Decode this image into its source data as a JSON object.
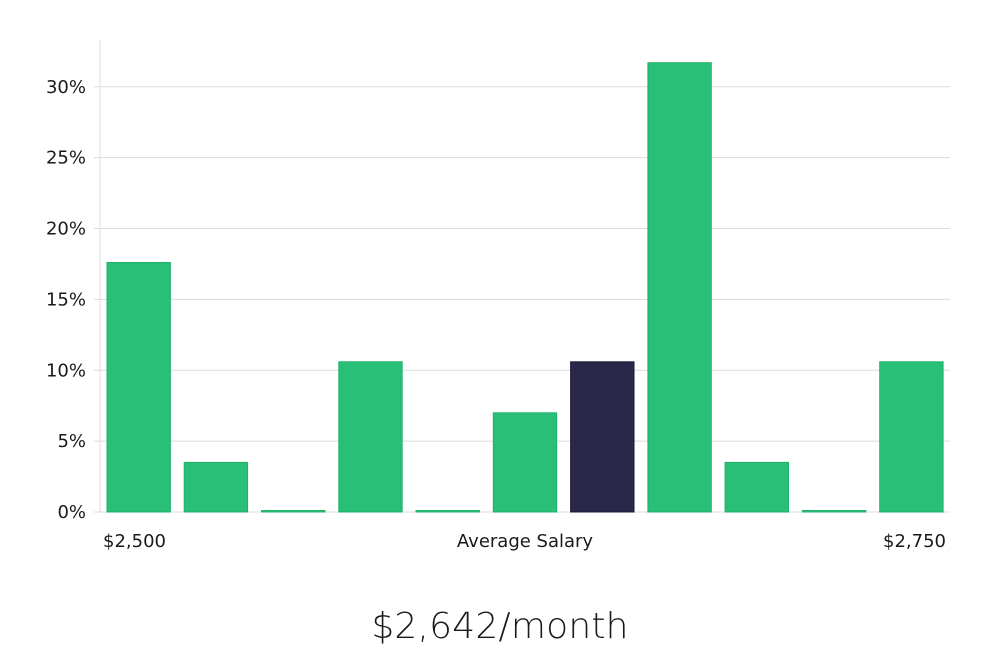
{
  "chart_data": {
    "type": "bar",
    "xlabel": "Average Salary",
    "x_start_label": "$2,500",
    "x_end_label": "$2,750",
    "ylim": [
      0,
      33.3
    ],
    "yticks": [
      0,
      5,
      10,
      15,
      20,
      25,
      30
    ],
    "ytick_labels": [
      "0%",
      "5%",
      "10%",
      "15%",
      "20%",
      "25%",
      "30%"
    ],
    "grid": true,
    "values": [
      17.6,
      3.5,
      0.1,
      10.6,
      0.1,
      7.0,
      10.6,
      31.7,
      3.5,
      0.1,
      10.6
    ],
    "highlight_index": 6,
    "colors": {
      "bar": "#2abf77",
      "highlight": "#29274a",
      "grid": "#dcdcdc",
      "axis": "#dcdcdc"
    }
  },
  "summary": {
    "salary": "$2,642/month"
  }
}
